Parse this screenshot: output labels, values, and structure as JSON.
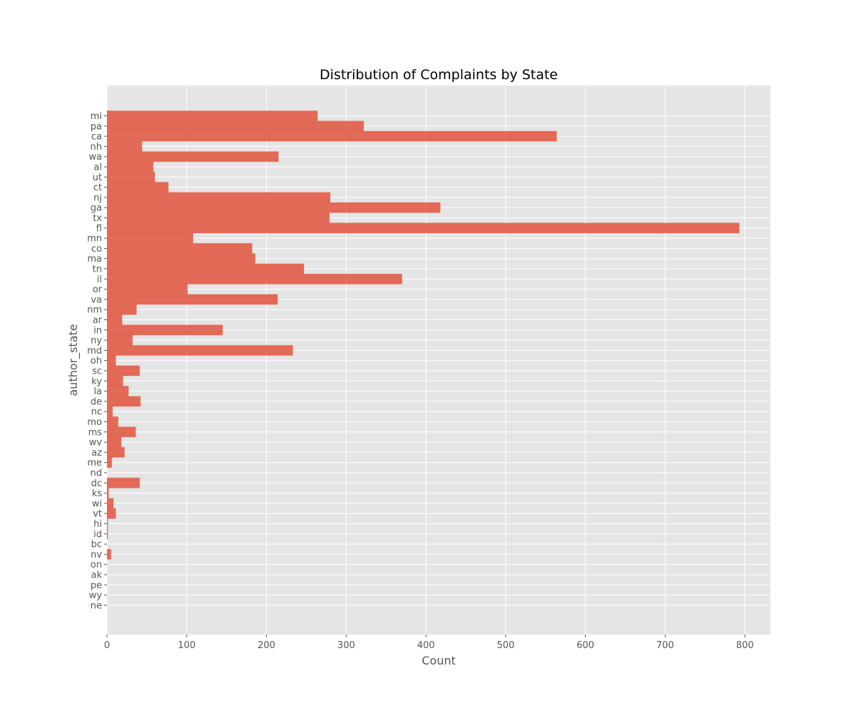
{
  "chart_data": {
    "type": "bar",
    "orientation": "horizontal",
    "title": "Distribution of Complaints by State",
    "xlabel": "Count",
    "ylabel": "author_state",
    "xlim": [
      0,
      832
    ],
    "xticks": [
      0,
      100,
      200,
      300,
      400,
      500,
      600,
      700,
      800
    ],
    "grid": true,
    "bar_color": "#E24A33",
    "bar_alpha": 0.8,
    "background_color": "#E5E5E5",
    "grid_color": "#FFFFFF",
    "categories": [
      "mi",
      "pa",
      "ca",
      "nh",
      "wa",
      "al",
      "ut",
      "ct",
      "nj",
      "ga",
      "tx",
      "fl",
      "mn",
      "co",
      "ma",
      "tn",
      "il",
      "or",
      "va",
      "nm",
      "ar",
      "in",
      "ny",
      "md",
      "oh",
      "sc",
      "ky",
      "la",
      "de",
      "nc",
      "mo",
      "ms",
      "wv",
      "az",
      "me",
      "nd",
      "dc",
      "ks",
      "wi",
      "vt",
      "hi",
      "id",
      "bc",
      "nv",
      "on",
      "ak",
      "pe",
      "wy",
      "ne"
    ],
    "values": [
      264,
      322,
      564,
      44,
      215,
      58,
      60,
      77,
      280,
      418,
      279,
      793,
      108,
      182,
      186,
      247,
      370,
      101,
      214,
      37,
      19,
      145,
      32,
      233,
      11,
      41,
      20,
      27,
      42,
      7,
      14,
      36,
      18,
      22,
      6,
      0,
      41,
      2,
      8,
      11,
      1,
      1,
      0,
      5,
      0,
      0,
      0,
      0,
      0
    ]
  }
}
